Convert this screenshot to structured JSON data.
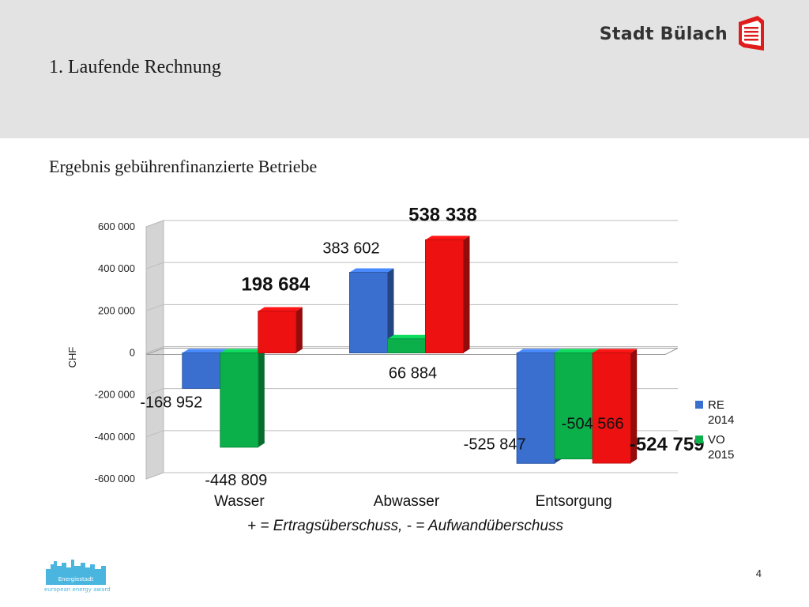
{
  "header": {
    "section_title": "1. Laufende Rechnung",
    "brand_name": "Stadt Bülach",
    "brand_logo_icon": "stadt-buelach-logo-icon"
  },
  "subtitle": "Ergebnis gebührenfinanzierte Betriebe",
  "chart_data": {
    "type": "bar",
    "title": "",
    "ylabel": "CHF",
    "xlabel": "",
    "ylim": [
      -600000,
      600000
    ],
    "yticks": [
      600000,
      400000,
      200000,
      0,
      -200000,
      -400000,
      -600000
    ],
    "ytick_labels": [
      "600 000",
      "400 000",
      "200 000",
      "0",
      "-200 000",
      "-400 000",
      "-600 000"
    ],
    "categories": [
      "Wasser",
      "Abwasser",
      "Entsorgung"
    ],
    "series": [
      {
        "name": "RE 2014",
        "color": "#3a6fd0",
        "values": [
          -168952,
          383602,
          -525847
        ]
      },
      {
        "name": "VO 2015",
        "color": "#0bb04b",
        "values": [
          -448809,
          66884,
          -504566
        ]
      },
      {
        "name": "",
        "color": "#ee1111",
        "values": [
          198684,
          538338,
          -524759
        ]
      }
    ],
    "data_labels": [
      [
        "-168 952",
        "383 602",
        "-525 847"
      ],
      [
        "-448 809",
        "66 884",
        "-504 566"
      ],
      [
        "198 684",
        "538 338",
        "-524 759"
      ]
    ],
    "legend": {
      "placement": "right",
      "entries": [
        {
          "label_line1": "RE",
          "label_line2": "2014"
        },
        {
          "label_line1": "VO",
          "label_line2": "2015"
        }
      ]
    },
    "annotation": "+ = Ertragsüberschuss, - = Aufwandüberschuss",
    "grid": true
  },
  "footer": {
    "logo_label": "Energiestadt",
    "logo_tagline": "european energy award",
    "page_number": "4"
  }
}
